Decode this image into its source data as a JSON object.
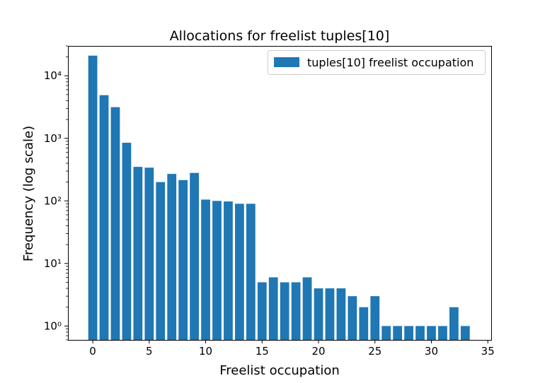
{
  "chart_data": {
    "type": "bar",
    "title": "Allocations for freelist tuples[10]",
    "xlabel": "Freelist occupation",
    "ylabel": "Frequency (log scale)",
    "yscale": "log",
    "xlim": [
      -2.2,
      35.3
    ],
    "ylim": [
      0.6,
      30000
    ],
    "xticks": [
      0,
      5,
      10,
      15,
      20,
      25,
      30,
      35
    ],
    "yticks": [
      {
        "value": 1,
        "label": "10⁰"
      },
      {
        "value": 10,
        "label": "10¹"
      },
      {
        "value": 100,
        "label": "10²"
      },
      {
        "value": 1000,
        "label": "10³"
      },
      {
        "value": 10000,
        "label": "10⁴"
      }
    ],
    "grid": false,
    "legend_position": "top-right",
    "series": [
      {
        "name": "tuples[10] freelist occupation",
        "color": "#1f77b4",
        "x": [
          0,
          1,
          2,
          3,
          4,
          5,
          6,
          7,
          8,
          9,
          10,
          11,
          12,
          13,
          14,
          15,
          16,
          17,
          18,
          19,
          20,
          21,
          22,
          23,
          24,
          25,
          26,
          27,
          28,
          29,
          30,
          31,
          32,
          33
        ],
        "values": [
          21000,
          4900,
          3150,
          850,
          350,
          340,
          200,
          270,
          215,
          280,
          105,
          100,
          98,
          90,
          90,
          5,
          6,
          5,
          5,
          6,
          4,
          4,
          4,
          3,
          2,
          3,
          1,
          1,
          1,
          1,
          1,
          1,
          2,
          1
        ]
      }
    ]
  }
}
